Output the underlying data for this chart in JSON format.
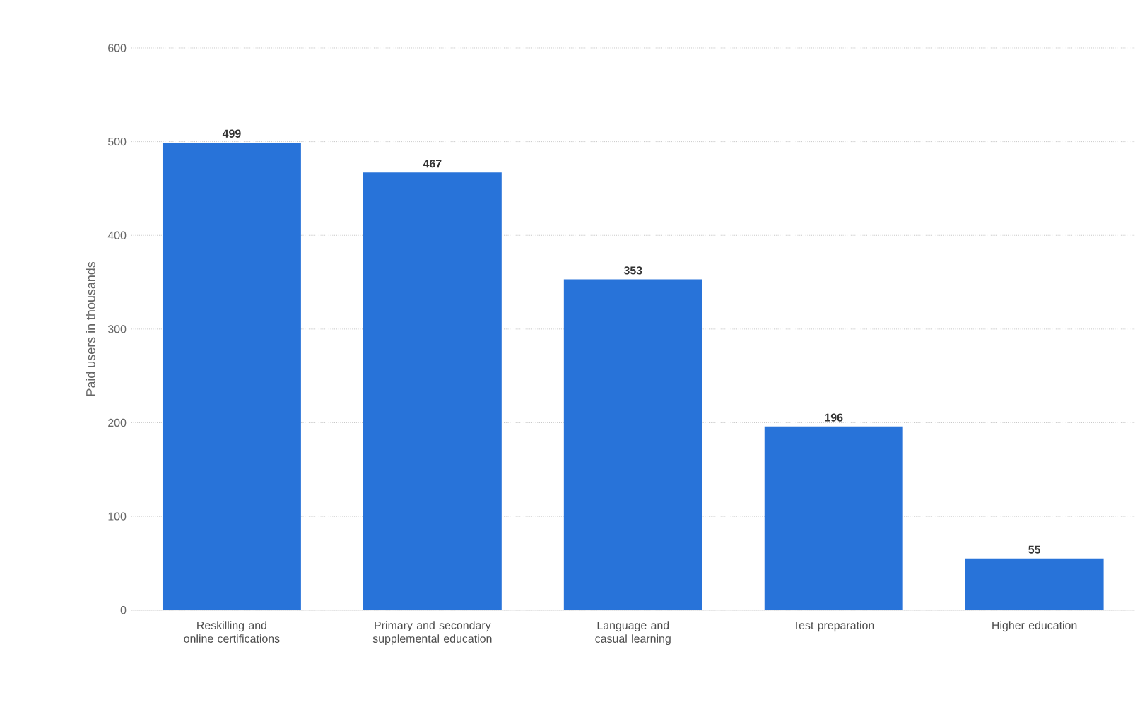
{
  "chart_data": {
    "type": "bar",
    "ylabel": "Paid users in thousands",
    "categories": [
      "Reskilling and online certifications",
      "Primary and secondary supplemental education",
      "Language and casual learning",
      "Test preparation",
      "Higher education"
    ],
    "values": [
      499,
      467,
      353,
      196,
      55
    ],
    "color": "#2873d9",
    "ylim": [
      0,
      600
    ],
    "yticks": [
      0,
      100,
      200,
      300,
      400,
      500,
      600
    ],
    "grid": "y",
    "data_labels": true
  }
}
